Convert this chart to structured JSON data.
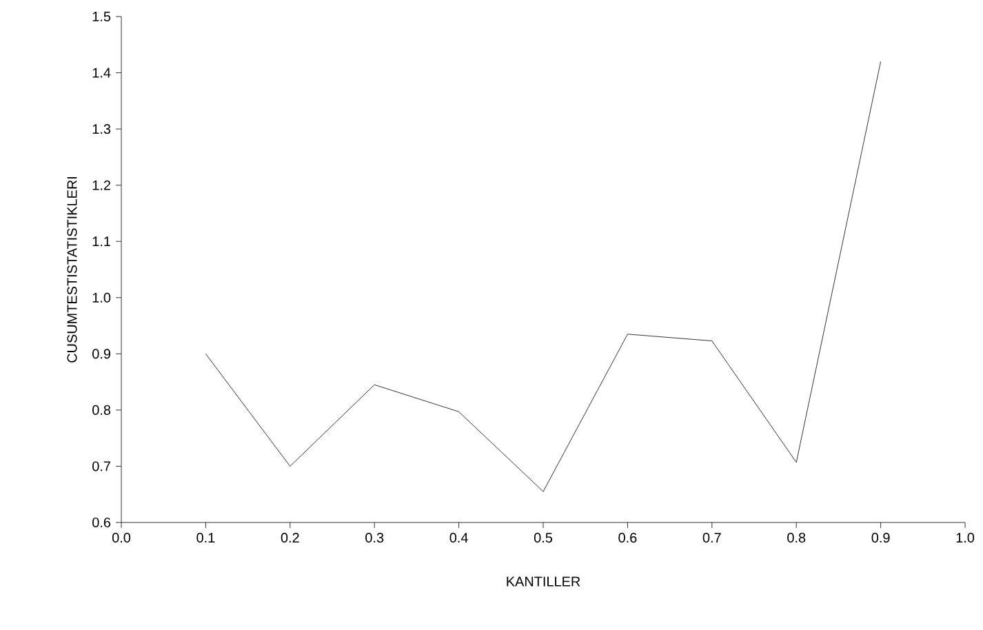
{
  "chart_data": {
    "type": "line",
    "xlabel": "KANTILLER",
    "ylabel": "CUSUMTESTISTATISTIKLERI",
    "x": [
      0.1,
      0.2,
      0.3,
      0.4,
      0.5,
      0.6,
      0.7,
      0.8,
      0.9
    ],
    "values": [
      0.9,
      0.7,
      0.845,
      0.797,
      0.655,
      0.935,
      0.923,
      0.707,
      1.42
    ],
    "color": "#000000",
    "xlim": [
      0.0,
      1.0
    ],
    "xticks": [
      {
        "value": 0.0,
        "label": "0.0"
      },
      0.1,
      0.2,
      0.3,
      0.4,
      0.5,
      0.6,
      0.7,
      0.8,
      0.9,
      {
        "value": 1.0,
        "label": "1.0"
      }
    ],
    "ylim": [
      0.6,
      1.5
    ],
    "yticks": [
      0.6,
      0.7,
      0.8,
      0.9,
      {
        "value": 1.0,
        "label": "1.0"
      },
      1.1,
      1.2,
      1.3,
      1.4,
      1.5
    ],
    "grid": false,
    "marker": "none",
    "line_style": "solid"
  }
}
